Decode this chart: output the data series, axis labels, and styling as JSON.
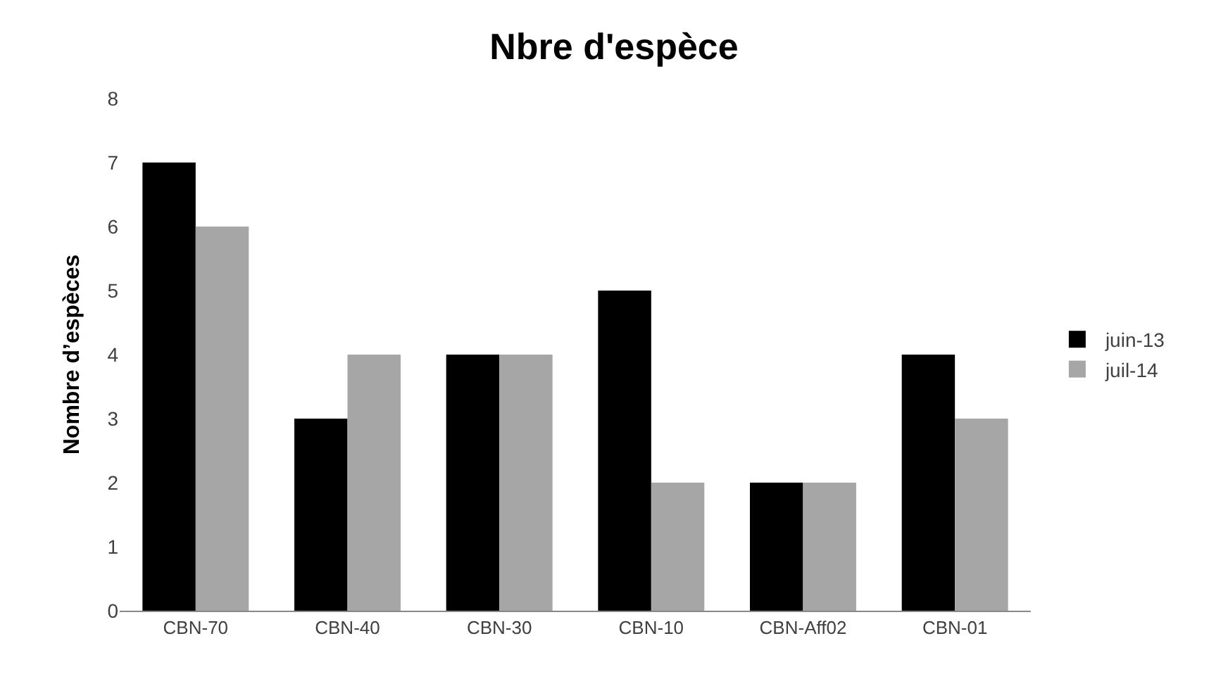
{
  "chart_data": {
    "type": "bar",
    "title": "Nbre d'espèce",
    "ylabel": "Nombre d’espèces",
    "categories": [
      "CBN-70",
      "CBN-40",
      "CBN-30",
      "CBN-10",
      "CBN-Aff02",
      "CBN-01"
    ],
    "series": [
      {
        "name": "juin-13",
        "color": "#000000",
        "values": [
          7,
          3,
          4,
          5,
          2,
          4
        ]
      },
      {
        "name": "juil-14",
        "color": "#a6a6a6",
        "values": [
          6,
          4,
          4,
          2,
          2,
          3
        ]
      }
    ],
    "ylim": [
      0,
      8
    ],
    "yticks": [
      0,
      1,
      2,
      3,
      4,
      5,
      6,
      7,
      8
    ],
    "legend": "right"
  }
}
